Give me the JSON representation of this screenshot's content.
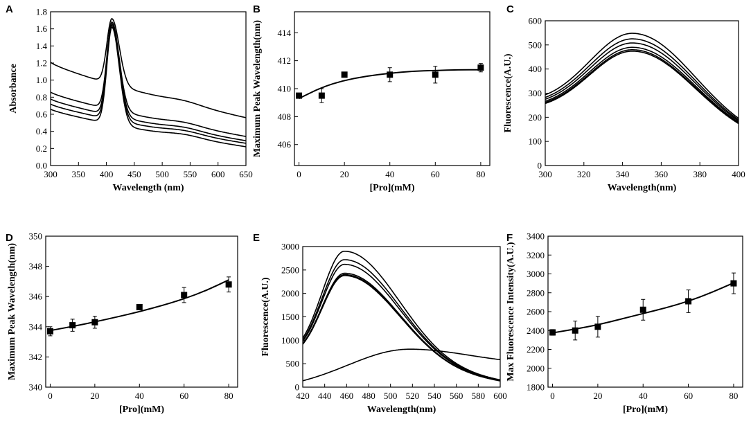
{
  "chart_data": [
    {
      "panel": "A",
      "type": "line",
      "xlabel": "Wavelength (nm)",
      "ylabel": "Absorbance",
      "xlim": [
        300,
        650
      ],
      "ylim": [
        0.0,
        1.8
      ],
      "xticks": [
        300,
        350,
        400,
        450,
        500,
        550,
        600,
        650
      ],
      "yticks": [
        0.0,
        0.2,
        0.4,
        0.6,
        0.8,
        1.0,
        1.2,
        1.4,
        1.6,
        1.8
      ],
      "ytick_decimals": 1,
      "curve_model": "absorbance",
      "series": [
        {
          "name": "curve 1",
          "base300": 1.21,
          "base650": 0.56,
          "peak": 1.72
        },
        {
          "name": "curve 2",
          "base300": 0.86,
          "base650": 0.34,
          "peak": 1.68
        },
        {
          "name": "curve 3",
          "base300": 0.78,
          "base650": 0.29,
          "peak": 1.66
        },
        {
          "name": "curve 4",
          "base300": 0.72,
          "base650": 0.26,
          "peak": 1.64
        },
        {
          "name": "curve 5",
          "base300": 0.66,
          "base650": 0.22,
          "peak": 1.62
        }
      ]
    },
    {
      "panel": "B",
      "type": "scatter",
      "xlabel": "[Pro](mM)",
      "ylabel": "Maximum Peak Wavelength(nm)",
      "xlim": [
        -2,
        84
      ],
      "ylim": [
        404.5,
        415.5
      ],
      "xticks": [
        0,
        20,
        40,
        60,
        80
      ],
      "yticks": [
        406,
        408,
        410,
        412,
        414
      ],
      "ytick_decimals": 0,
      "x": [
        0,
        10,
        20,
        40,
        60,
        80
      ],
      "y": [
        409.5,
        409.5,
        411.0,
        411.0,
        411.0,
        411.5
      ],
      "yerr": [
        0.0,
        0.5,
        0.0,
        0.5,
        0.6,
        0.3
      ],
      "fit": {
        "x": [
          0,
          10,
          20,
          30,
          40,
          50,
          60,
          70,
          80
        ],
        "y": [
          409.3,
          410.1,
          410.6,
          410.9,
          411.1,
          411.25,
          411.3,
          411.35,
          411.35
        ]
      }
    },
    {
      "panel": "C",
      "type": "line",
      "xlabel": "Wavelength(nm)",
      "ylabel": "Fluorescence(A.U.)",
      "xlim": [
        300,
        400
      ],
      "ylim": [
        0,
        600
      ],
      "xticks": [
        300,
        320,
        340,
        360,
        380,
        400
      ],
      "yticks": [
        0,
        100,
        200,
        300,
        400,
        500,
        600
      ],
      "ytick_decimals": 0,
      "curve_model": "emission",
      "series": [
        {
          "name": "curve 1",
          "peak_x": 345,
          "peak": 548,
          "start": 240,
          "end": 115,
          "wl": 24,
          "wr": 30
        },
        {
          "name": "curve 2",
          "peak_x": 345,
          "peak": 525,
          "start": 232,
          "end": 113,
          "wl": 24,
          "wr": 30
        },
        {
          "name": "curve 3",
          "peak_x": 345,
          "peak": 508,
          "start": 226,
          "end": 111,
          "wl": 24,
          "wr": 30
        },
        {
          "name": "curve 4",
          "peak_x": 345,
          "peak": 490,
          "start": 220,
          "end": 109,
          "wl": 24,
          "wr": 30
        },
        {
          "name": "curve 5",
          "peak_x": 345,
          "peak": 480,
          "start": 216,
          "end": 107,
          "wl": 24,
          "wr": 30
        },
        {
          "name": "curve 6",
          "peak_x": 345,
          "peak": 474,
          "start": 212,
          "end": 105,
          "wl": 24,
          "wr": 30
        }
      ]
    },
    {
      "panel": "D",
      "type": "scatter",
      "xlabel": "[Pro](mM)",
      "ylabel": "Maximum Peak Wavelength(nm)",
      "xlim": [
        -2,
        84
      ],
      "ylim": [
        340,
        350
      ],
      "xticks": [
        0,
        20,
        40,
        60,
        80
      ],
      "yticks": [
        340,
        342,
        344,
        346,
        348,
        350
      ],
      "ytick_decimals": 0,
      "x": [
        0,
        10,
        20,
        40,
        60,
        80
      ],
      "y": [
        343.7,
        344.1,
        344.3,
        345.3,
        346.1,
        346.8
      ],
      "yerr": [
        0.3,
        0.4,
        0.4,
        0.0,
        0.5,
        0.5
      ],
      "fit": {
        "x": [
          0,
          10,
          20,
          30,
          40,
          50,
          60,
          70,
          80
        ],
        "y": [
          343.75,
          344.02,
          344.32,
          344.65,
          345.0,
          345.4,
          345.85,
          346.4,
          347.1
        ]
      }
    },
    {
      "panel": "E",
      "type": "line",
      "xlabel": "Wavelength(nm)",
      "ylabel": "Fluorescence(A.U.)",
      "xlim": [
        420,
        600
      ],
      "ylim": [
        0,
        3000
      ],
      "xticks": [
        420,
        440,
        460,
        480,
        500,
        520,
        540,
        560,
        580,
        600
      ],
      "yticks": [
        0,
        500,
        1000,
        1500,
        2000,
        2500,
        3000
      ],
      "ytick_decimals": 0,
      "curve_model": "emission",
      "series": [
        {
          "name": "curve 1",
          "peak_x": 458,
          "peak": 2900,
          "start": 600,
          "end": 120,
          "wl": 21,
          "wr": 48
        },
        {
          "name": "curve 2",
          "peak_x": 458,
          "peak": 2720,
          "start": 590,
          "end": 115,
          "wl": 21,
          "wr": 48
        },
        {
          "name": "curve 3",
          "peak_x": 458,
          "peak": 2620,
          "start": 580,
          "end": 112,
          "wl": 21,
          "wr": 48
        },
        {
          "name": "curve 4",
          "peak_x": 458,
          "peak": 2430,
          "start": 570,
          "end": 108,
          "wl": 21,
          "wr": 48
        },
        {
          "name": "curve 5",
          "peak_x": 458,
          "peak": 2400,
          "start": 565,
          "end": 106,
          "wl": 21,
          "wr": 48
        },
        {
          "name": "curve 6",
          "peak_x": 458,
          "peak": 2380,
          "start": 560,
          "end": 104,
          "wl": 21,
          "wr": 48
        },
        {
          "name": "curve 7",
          "peak_x": 518,
          "peak": 810,
          "start": 20,
          "end": 360,
          "wl": 50,
          "wr": 70
        }
      ]
    },
    {
      "panel": "F",
      "type": "scatter",
      "xlabel": "[Pro](mM)",
      "ylabel": "Max Fluorescence Intensity(A.U.)",
      "xlim": [
        -2,
        84
      ],
      "ylim": [
        1800,
        3400
      ],
      "xticks": [
        0,
        20,
        40,
        60,
        80
      ],
      "yticks": [
        1800,
        2000,
        2200,
        2400,
        2600,
        2800,
        3000,
        3200,
        3400
      ],
      "ytick_decimals": 0,
      "x": [
        0,
        10,
        20,
        40,
        60,
        80
      ],
      "y": [
        2380,
        2400,
        2440,
        2620,
        2710,
        2900
      ],
      "yerr": [
        30,
        100,
        110,
        110,
        120,
        110
      ],
      "fit": {
        "x": [
          0,
          10,
          20,
          30,
          40,
          50,
          60,
          70,
          80
        ],
        "y": [
          2375,
          2415,
          2460,
          2520,
          2580,
          2640,
          2710,
          2800,
          2905
        ]
      }
    }
  ]
}
